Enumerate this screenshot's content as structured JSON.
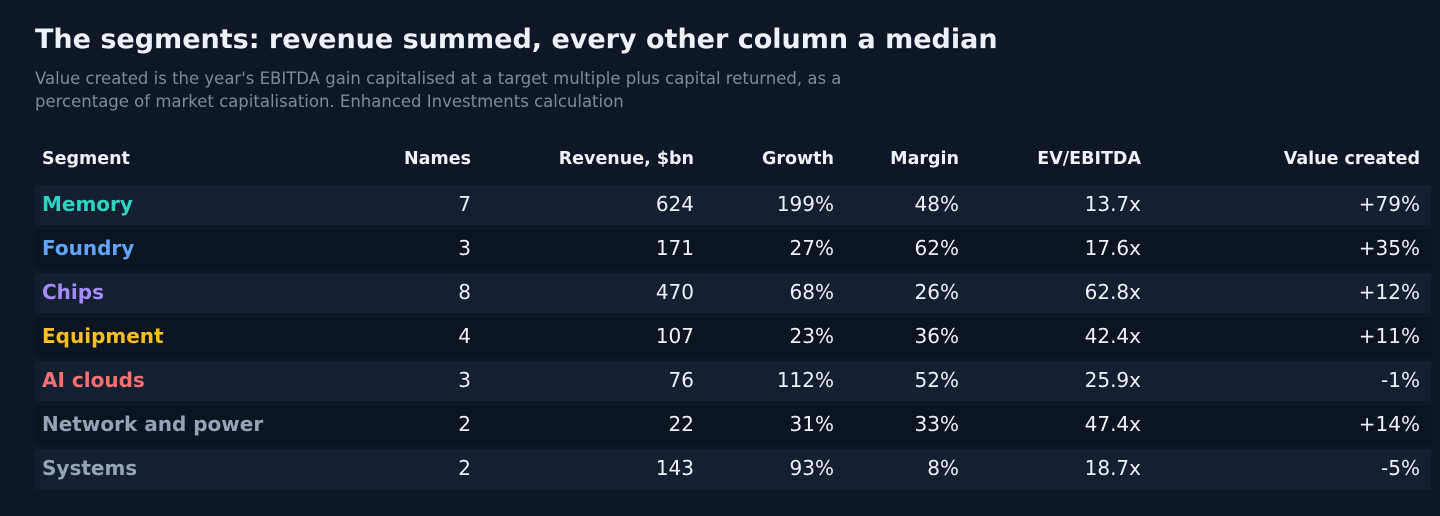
{
  "title": "The segments: revenue summed, every other column a median",
  "subtitle": "Value created is the year's EBITDA gain capitalised at a target multiple plus capital returned, as a percentage of market capitalisation. Enhanced Investments calculation",
  "table": {
    "headers": {
      "segment": "Segment",
      "names": "Names",
      "revenue": "Revenue, $bn",
      "growth": "Growth",
      "margin": "Margin",
      "ev_ebitda": "EV/EBITDA",
      "value_created": "Value created"
    },
    "rows": [
      {
        "segment": "Memory",
        "color": "#2dd4bf",
        "names": "7",
        "revenue": "624",
        "growth": "199%",
        "margin": "48%",
        "ev_ebitda": "13.7x",
        "value_created": "+79%"
      },
      {
        "segment": "Foundry",
        "color": "#60a5fa",
        "names": "3",
        "revenue": "171",
        "growth": "27%",
        "margin": "62%",
        "ev_ebitda": "17.6x",
        "value_created": "+35%"
      },
      {
        "segment": "Chips",
        "color": "#a78bfa",
        "names": "8",
        "revenue": "470",
        "growth": "68%",
        "margin": "26%",
        "ev_ebitda": "62.8x",
        "value_created": "+12%"
      },
      {
        "segment": "Equipment",
        "color": "#fbbf24",
        "names": "4",
        "revenue": "107",
        "growth": "23%",
        "margin": "36%",
        "ev_ebitda": "42.4x",
        "value_created": "+11%"
      },
      {
        "segment": "AI clouds",
        "color": "#f87171",
        "names": "3",
        "revenue": "76",
        "growth": "112%",
        "margin": "52%",
        "ev_ebitda": "25.9x",
        "value_created": "-1%"
      },
      {
        "segment": "Network and power",
        "color": "#94a3b8",
        "names": "2",
        "revenue": "22",
        "growth": "31%",
        "margin": "33%",
        "ev_ebitda": "47.4x",
        "value_created": "+14%"
      },
      {
        "segment": "Systems",
        "color": "#94a3b8",
        "names": "2",
        "revenue": "143",
        "growth": "93%",
        "margin": "8%",
        "ev_ebitda": "18.7x",
        "value_created": "-5%"
      }
    ]
  }
}
